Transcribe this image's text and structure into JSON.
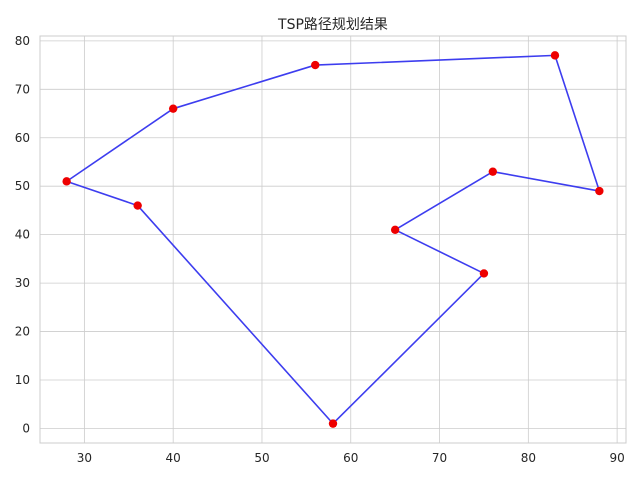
{
  "chart_data": {
    "type": "line",
    "title": "TSP路径规划结果",
    "xlabel": "",
    "ylabel": "",
    "xlim": [
      25,
      91
    ],
    "ylim": [
      -3,
      81
    ],
    "xticks": [
      30,
      40,
      50,
      60,
      70,
      80,
      90
    ],
    "yticks": [
      0,
      10,
      20,
      30,
      40,
      50,
      60,
      70,
      80
    ],
    "xtick_labels": [
      "30",
      "40",
      "50",
      "60",
      "70",
      "80",
      "90"
    ],
    "ytick_labels": [
      "0",
      "10",
      "20",
      "30",
      "40",
      "50",
      "60",
      "70",
      "80"
    ],
    "grid": true,
    "route_color": "#3333ee",
    "point_color": "#ee0000",
    "series": [
      {
        "x": [
          28,
          40,
          56,
          83,
          88,
          76,
          65,
          75,
          58,
          36,
          28
        ],
        "y": [
          51,
          66,
          75,
          77,
          49,
          53,
          41,
          32,
          1,
          46,
          51
        ]
      }
    ]
  }
}
